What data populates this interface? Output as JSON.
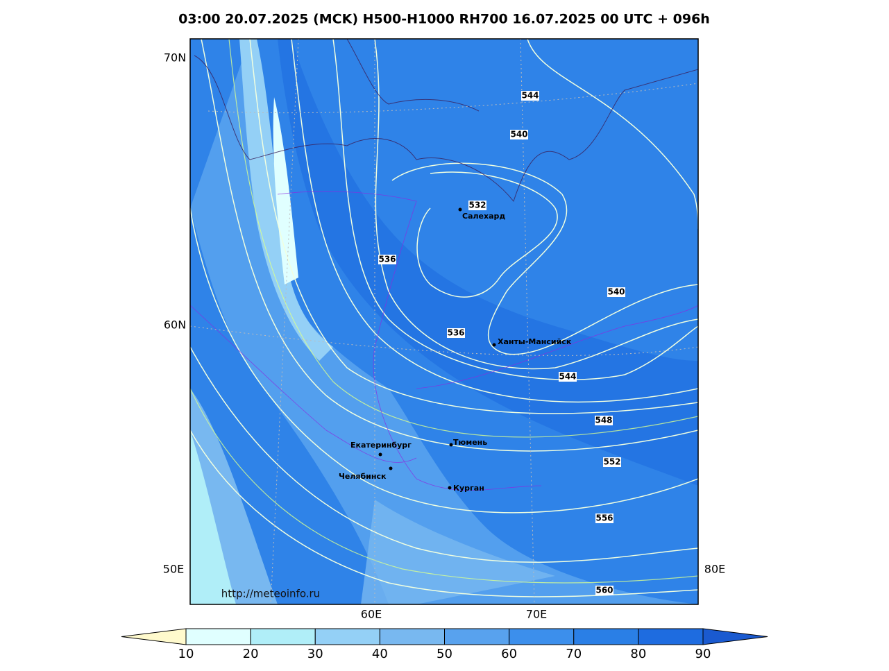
{
  "title": "03:00 20.07.2025 (MCK) H500-H1000 RH700 16.07.2025 00 UTC + 096h",
  "axis_labels": {
    "left": [
      "70N",
      "60N",
      "50E"
    ],
    "right": [
      "80E"
    ],
    "bottom": [
      "60E",
      "70E"
    ]
  },
  "contour_labels": [
    "544",
    "540",
    "532",
    "536",
    "540",
    "536",
    "544",
    "548",
    "552",
    "556",
    "560"
  ],
  "cities": [
    "Салехард",
    "Ханты-Мансийск",
    "Екатеринбург",
    "Тюмень",
    "Челябинск",
    "Курган"
  ],
  "credit": "http://meteoinfo.ru",
  "colorbar": {
    "ticks": [
      "10",
      "20",
      "30",
      "40",
      "50",
      "60",
      "70",
      "80",
      "90"
    ],
    "colors": [
      "#fffacd",
      "#e0ffff",
      "#b0eef8",
      "#94d0f6",
      "#78b8f0",
      "#58a2ee",
      "#3c8fec",
      "#2a7fe6",
      "#1e6ce0",
      "#1a5ad0"
    ]
  }
}
